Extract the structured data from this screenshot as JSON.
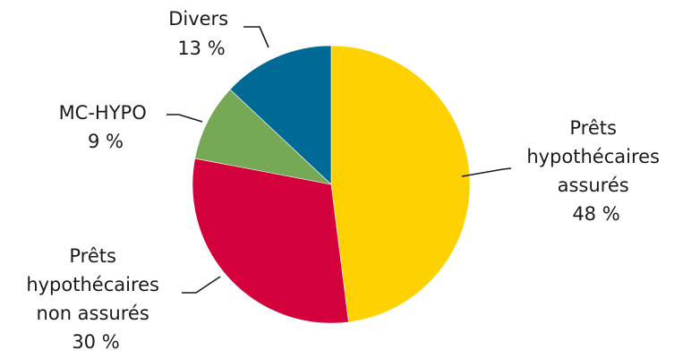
{
  "chart_data": {
    "type": "pie",
    "title": "",
    "start": "12 o'clock",
    "direction": "clockwise",
    "slices": [
      {
        "lines": [
          "Prêts",
          "hypothécaires",
          "assurés"
        ],
        "percent_label": "48 %",
        "value": 48,
        "color": "#FDD200"
      },
      {
        "lines": [
          "Prêts",
          "hypothécaires",
          "non assurés"
        ],
        "percent_label": "30 %",
        "value": 30,
        "color": "#D4003B"
      },
      {
        "lines": [
          "MC-HYPO"
        ],
        "percent_label": "9 %",
        "value": 9,
        "color": "#76A955"
      },
      {
        "lines": [
          "Divers"
        ],
        "percent_label": "13 %",
        "value": 13,
        "color": "#006A97"
      }
    ]
  }
}
